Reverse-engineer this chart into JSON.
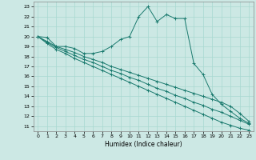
{
  "xlabel": "Humidex (Indice chaleur)",
  "xlim": [
    -0.5,
    23.5
  ],
  "ylim": [
    10.5,
    23.5
  ],
  "xticks": [
    0,
    1,
    2,
    3,
    4,
    5,
    6,
    7,
    8,
    9,
    10,
    11,
    12,
    13,
    14,
    15,
    16,
    17,
    18,
    19,
    20,
    21,
    22,
    23
  ],
  "yticks": [
    11,
    12,
    13,
    14,
    15,
    16,
    17,
    18,
    19,
    20,
    21,
    22,
    23
  ],
  "bg_color": "#cce8e4",
  "grid_color": "#a8d8d0",
  "line_color": "#1a7a6e",
  "lines": [
    {
      "x": [
        0,
        1,
        2,
        3,
        4,
        5,
        6,
        7,
        8,
        9,
        10,
        11,
        12,
        13,
        14,
        15,
        16,
        17,
        18,
        19,
        20,
        21,
        22,
        23
      ],
      "y": [
        20.0,
        19.9,
        19.0,
        19.0,
        18.8,
        18.3,
        18.3,
        18.5,
        19.0,
        19.7,
        20.0,
        22.0,
        23.0,
        21.5,
        22.2,
        21.8,
        21.8,
        17.3,
        16.2,
        14.2,
        13.2,
        12.5,
        11.8,
        11.3
      ]
    },
    {
      "x": [
        0,
        1,
        2,
        3,
        4,
        5,
        6,
        7,
        8,
        9,
        10,
        11,
        12,
        13,
        14,
        15,
        16,
        17,
        18,
        19,
        20,
        21,
        22,
        23
      ],
      "y": [
        20.0,
        19.5,
        19.0,
        18.7,
        18.4,
        18.0,
        17.7,
        17.4,
        17.0,
        16.7,
        16.4,
        16.1,
        15.8,
        15.5,
        15.2,
        14.9,
        14.6,
        14.3,
        14.0,
        13.7,
        13.4,
        13.0,
        12.3,
        11.5
      ]
    },
    {
      "x": [
        0,
        1,
        2,
        3,
        4,
        5,
        6,
        7,
        8,
        9,
        10,
        11,
        12,
        13,
        14,
        15,
        16,
        17,
        18,
        19,
        20,
        21,
        22,
        23
      ],
      "y": [
        20.0,
        19.4,
        18.9,
        18.5,
        18.1,
        17.7,
        17.4,
        17.0,
        16.6,
        16.3,
        15.9,
        15.6,
        15.2,
        14.8,
        14.5,
        14.1,
        13.8,
        13.4,
        13.1,
        12.7,
        12.4,
        12.0,
        11.6,
        11.2
      ]
    },
    {
      "x": [
        0,
        1,
        2,
        3,
        4,
        5,
        6,
        7,
        8,
        9,
        10,
        11,
        12,
        13,
        14,
        15,
        16,
        17,
        18,
        19,
        20,
        21,
        22,
        23
      ],
      "y": [
        20.0,
        19.3,
        18.7,
        18.3,
        17.8,
        17.4,
        17.0,
        16.6,
        16.2,
        15.8,
        15.4,
        15.0,
        14.6,
        14.2,
        13.8,
        13.4,
        13.0,
        12.6,
        12.2,
        11.8,
        11.4,
        11.1,
        10.8,
        10.6
      ]
    }
  ]
}
